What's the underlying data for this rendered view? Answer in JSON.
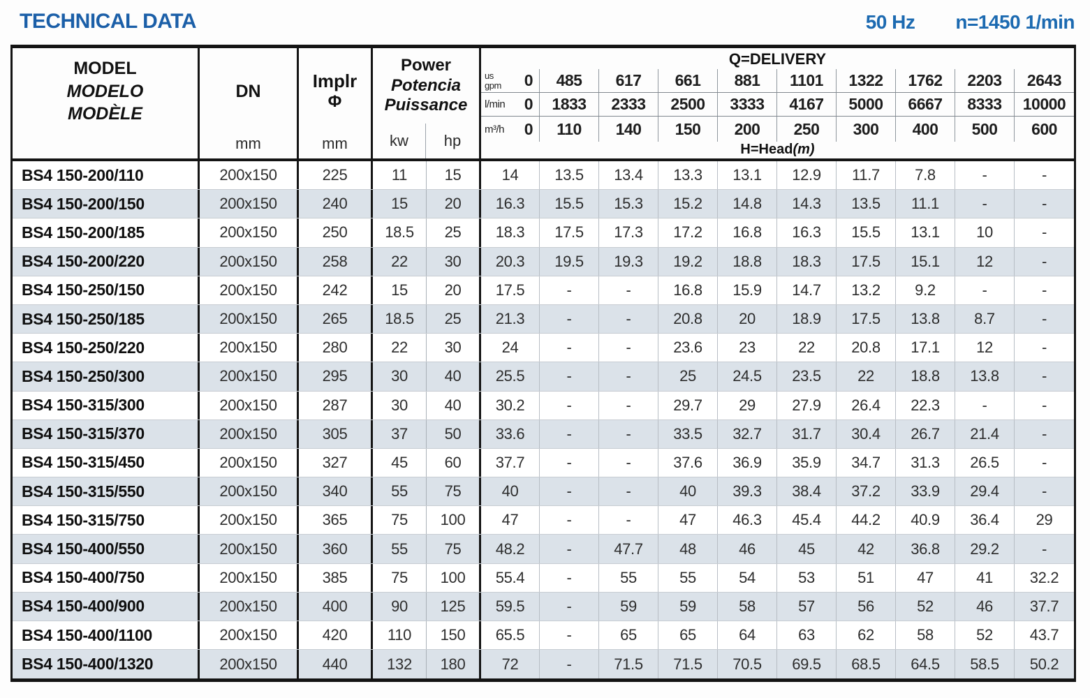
{
  "header": {
    "title": "TECHNICAL DATA",
    "frequency": "50 Hz",
    "speed": "n=1450 1/min"
  },
  "colors": {
    "accent_blue": "#1b5fa8",
    "row_shade": "#dbe2e9"
  },
  "table": {
    "model_header": {
      "line1": "MODEL",
      "line2": "MODELO",
      "line3": "MODÈLE"
    },
    "dn_header": {
      "label": "DN",
      "unit": "mm"
    },
    "impeller_header": {
      "label": "Implr",
      "symbol": "Φ",
      "unit": "mm"
    },
    "power_header": {
      "line1": "Power",
      "line2": "Potencia",
      "line3": "Puissance",
      "unit_kw": "kw",
      "unit_hp": "hp"
    },
    "delivery": {
      "title": "Q=DELIVERY",
      "head_label": "H=Head",
      "head_unit": "(m)",
      "unit_rows": [
        {
          "unit_lines": [
            "us",
            "gpm"
          ],
          "values": [
            "0",
            "485",
            "617",
            "661",
            "881",
            "1101",
            "1322",
            "1762",
            "2203",
            "2643"
          ]
        },
        {
          "unit_lines": [
            "l/min"
          ],
          "values": [
            "0",
            "1833",
            "2333",
            "2500",
            "3333",
            "4167",
            "5000",
            "6667",
            "8333",
            "10000"
          ]
        },
        {
          "unit_lines": [
            "m³/h"
          ],
          "values": [
            "0",
            "110",
            "140",
            "150",
            "200",
            "250",
            "300",
            "400",
            "500",
            "600"
          ]
        }
      ]
    },
    "rows": [
      {
        "model": "BS4 150-200/110",
        "dn": "200x150",
        "impeller": "225",
        "kw": "11",
        "hp": "15",
        "head": [
          "14",
          "13.5",
          "13.4",
          "13.3",
          "13.1",
          "12.9",
          "11.7",
          "7.8",
          "-",
          "-"
        ]
      },
      {
        "model": "BS4 150-200/150",
        "dn": "200x150",
        "impeller": "240",
        "kw": "15",
        "hp": "20",
        "head": [
          "16.3",
          "15.5",
          "15.3",
          "15.2",
          "14.8",
          "14.3",
          "13.5",
          "11.1",
          "-",
          "-"
        ]
      },
      {
        "model": "BS4 150-200/185",
        "dn": "200x150",
        "impeller": "250",
        "kw": "18.5",
        "hp": "25",
        "head": [
          "18.3",
          "17.5",
          "17.3",
          "17.2",
          "16.8",
          "16.3",
          "15.5",
          "13.1",
          "10",
          "-"
        ]
      },
      {
        "model": "BS4 150-200/220",
        "dn": "200x150",
        "impeller": "258",
        "kw": "22",
        "hp": "30",
        "head": [
          "20.3",
          "19.5",
          "19.3",
          "19.2",
          "18.8",
          "18.3",
          "17.5",
          "15.1",
          "12",
          "-"
        ]
      },
      {
        "model": "BS4 150-250/150",
        "dn": "200x150",
        "impeller": "242",
        "kw": "15",
        "hp": "20",
        "head": [
          "17.5",
          "-",
          "-",
          "16.8",
          "15.9",
          "14.7",
          "13.2",
          "9.2",
          "-",
          "-"
        ]
      },
      {
        "model": "BS4 150-250/185",
        "dn": "200x150",
        "impeller": "265",
        "kw": "18.5",
        "hp": "25",
        "head": [
          "21.3",
          "-",
          "-",
          "20.8",
          "20",
          "18.9",
          "17.5",
          "13.8",
          "8.7",
          "-"
        ]
      },
      {
        "model": "BS4 150-250/220",
        "dn": "200x150",
        "impeller": "280",
        "kw": "22",
        "hp": "30",
        "head": [
          "24",
          "-",
          "-",
          "23.6",
          "23",
          "22",
          "20.8",
          "17.1",
          "12",
          "-"
        ]
      },
      {
        "model": "BS4 150-250/300",
        "dn": "200x150",
        "impeller": "295",
        "kw": "30",
        "hp": "40",
        "head": [
          "25.5",
          "-",
          "-",
          "25",
          "24.5",
          "23.5",
          "22",
          "18.8",
          "13.8",
          "-"
        ]
      },
      {
        "model": "BS4 150-315/300",
        "dn": "200x150",
        "impeller": "287",
        "kw": "30",
        "hp": "40",
        "head": [
          "30.2",
          "-",
          "-",
          "29.7",
          "29",
          "27.9",
          "26.4",
          "22.3",
          "-",
          "-"
        ]
      },
      {
        "model": "BS4 150-315/370",
        "dn": "200x150",
        "impeller": "305",
        "kw": "37",
        "hp": "50",
        "head": [
          "33.6",
          "-",
          "-",
          "33.5",
          "32.7",
          "31.7",
          "30.4",
          "26.7",
          "21.4",
          "-"
        ]
      },
      {
        "model": "BS4 150-315/450",
        "dn": "200x150",
        "impeller": "327",
        "kw": "45",
        "hp": "60",
        "head": [
          "37.7",
          "-",
          "-",
          "37.6",
          "36.9",
          "35.9",
          "34.7",
          "31.3",
          "26.5",
          "-"
        ]
      },
      {
        "model": "BS4 150-315/550",
        "dn": "200x150",
        "impeller": "340",
        "kw": "55",
        "hp": "75",
        "head": [
          "40",
          "-",
          "-",
          "40",
          "39.3",
          "38.4",
          "37.2",
          "33.9",
          "29.4",
          "-"
        ]
      },
      {
        "model": "BS4 150-315/750",
        "dn": "200x150",
        "impeller": "365",
        "kw": "75",
        "hp": "100",
        "head": [
          "47",
          "-",
          "-",
          "47",
          "46.3",
          "45.4",
          "44.2",
          "40.9",
          "36.4",
          "29"
        ]
      },
      {
        "model": "BS4 150-400/550",
        "dn": "200x150",
        "impeller": "360",
        "kw": "55",
        "hp": "75",
        "head": [
          "48.2",
          "-",
          "47.7",
          "48",
          "46",
          "45",
          "42",
          "36.8",
          "29.2",
          "-"
        ]
      },
      {
        "model": "BS4 150-400/750",
        "dn": "200x150",
        "impeller": "385",
        "kw": "75",
        "hp": "100",
        "head": [
          "55.4",
          "-",
          "55",
          "55",
          "54",
          "53",
          "51",
          "47",
          "41",
          "32.2"
        ]
      },
      {
        "model": "BS4 150-400/900",
        "dn": "200x150",
        "impeller": "400",
        "kw": "90",
        "hp": "125",
        "head": [
          "59.5",
          "-",
          "59",
          "59",
          "58",
          "57",
          "56",
          "52",
          "46",
          "37.7"
        ]
      },
      {
        "model": "BS4 150-400/1100",
        "dn": "200x150",
        "impeller": "420",
        "kw": "110",
        "hp": "150",
        "head": [
          "65.5",
          "-",
          "65",
          "65",
          "64",
          "63",
          "62",
          "58",
          "52",
          "43.7"
        ]
      },
      {
        "model": "BS4 150-400/1320",
        "dn": "200x150",
        "impeller": "440",
        "kw": "132",
        "hp": "180",
        "head": [
          "72",
          "-",
          "71.5",
          "71.5",
          "70.5",
          "69.5",
          "68.5",
          "64.5",
          "58.5",
          "50.2"
        ]
      }
    ]
  }
}
